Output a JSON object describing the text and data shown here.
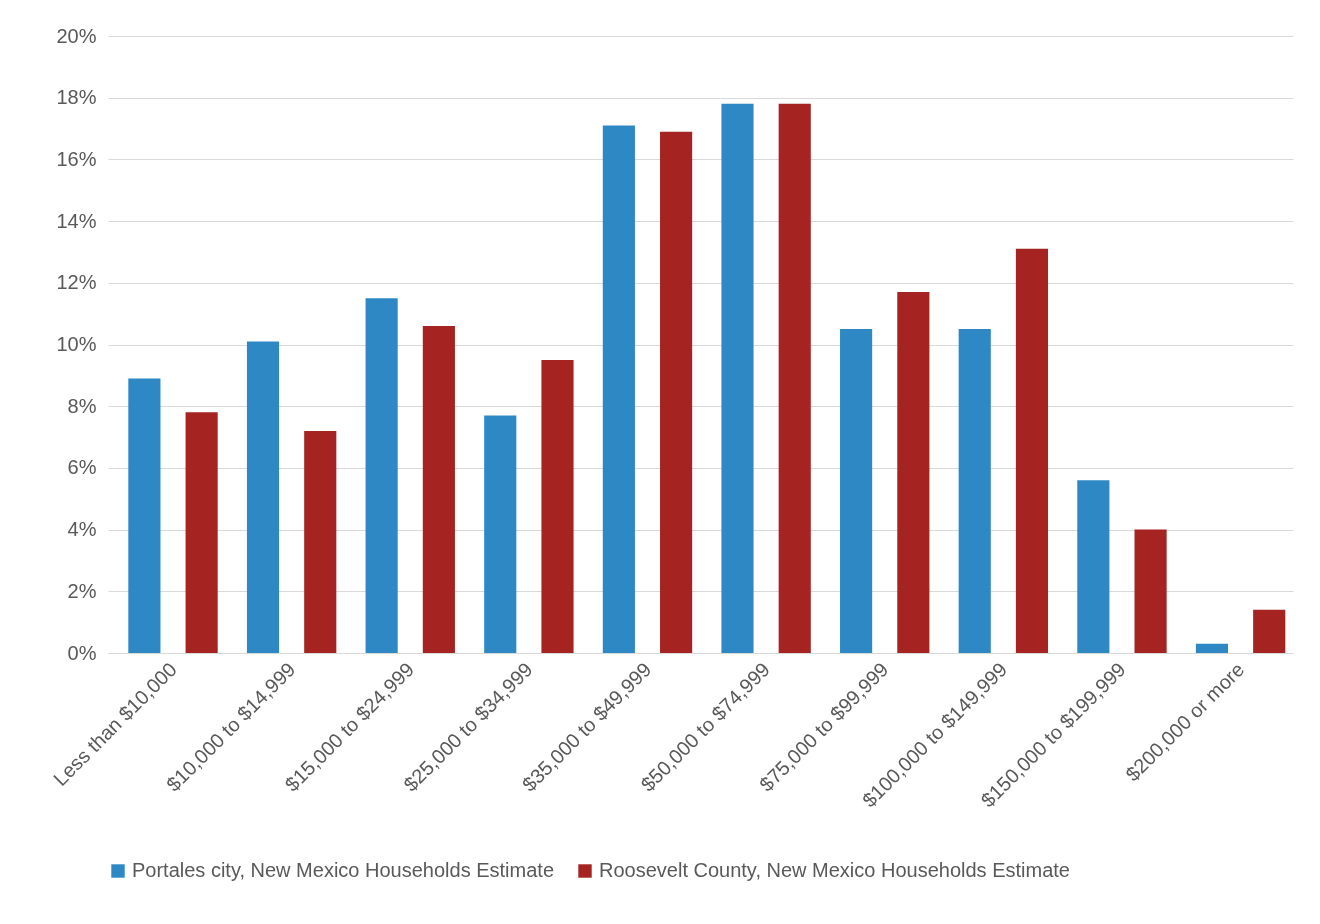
{
  "chart_data": {
    "type": "bar",
    "categories": [
      "Less than $10,000",
      "$10,000 to $14,999",
      "$15,000 to $24,999",
      "$25,000 to $34,999",
      "$35,000 to $49,999",
      "$50,000 to $74,999",
      "$75,000 to $99,999",
      "$100,000 to $149,999",
      "$150,000 to $199,999",
      "$200,000 or more"
    ],
    "series": [
      {
        "name": "Portales city, New Mexico Households Estimate",
        "color": "#2e88c4",
        "values": [
          8.9,
          10.1,
          11.5,
          7.7,
          17.1,
          17.8,
          10.5,
          10.5,
          5.6,
          0.3
        ]
      },
      {
        "name": "Roosevelt County, New Mexico Households Estimate",
        "color": "#a52422",
        "values": [
          7.8,
          7.2,
          10.6,
          9.5,
          16.9,
          17.8,
          11.7,
          13.1,
          4.0,
          1.4
        ]
      }
    ],
    "ylim": [
      0,
      20
    ],
    "yticks": [
      {
        "value": 0,
        "label": "0%"
      },
      {
        "value": 2,
        "label": "2%"
      },
      {
        "value": 4,
        "label": "4%"
      },
      {
        "value": 6,
        "label": "6%"
      },
      {
        "value": 8,
        "label": "8%"
      },
      {
        "value": 10,
        "label": "10%"
      },
      {
        "value": 12,
        "label": "12%"
      },
      {
        "value": 14,
        "label": "14%"
      },
      {
        "value": 16,
        "label": "16%"
      },
      {
        "value": 18,
        "label": "18%"
      },
      {
        "value": 20,
        "label": "20%"
      }
    ],
    "grid": "y",
    "legend": "bottom"
  }
}
